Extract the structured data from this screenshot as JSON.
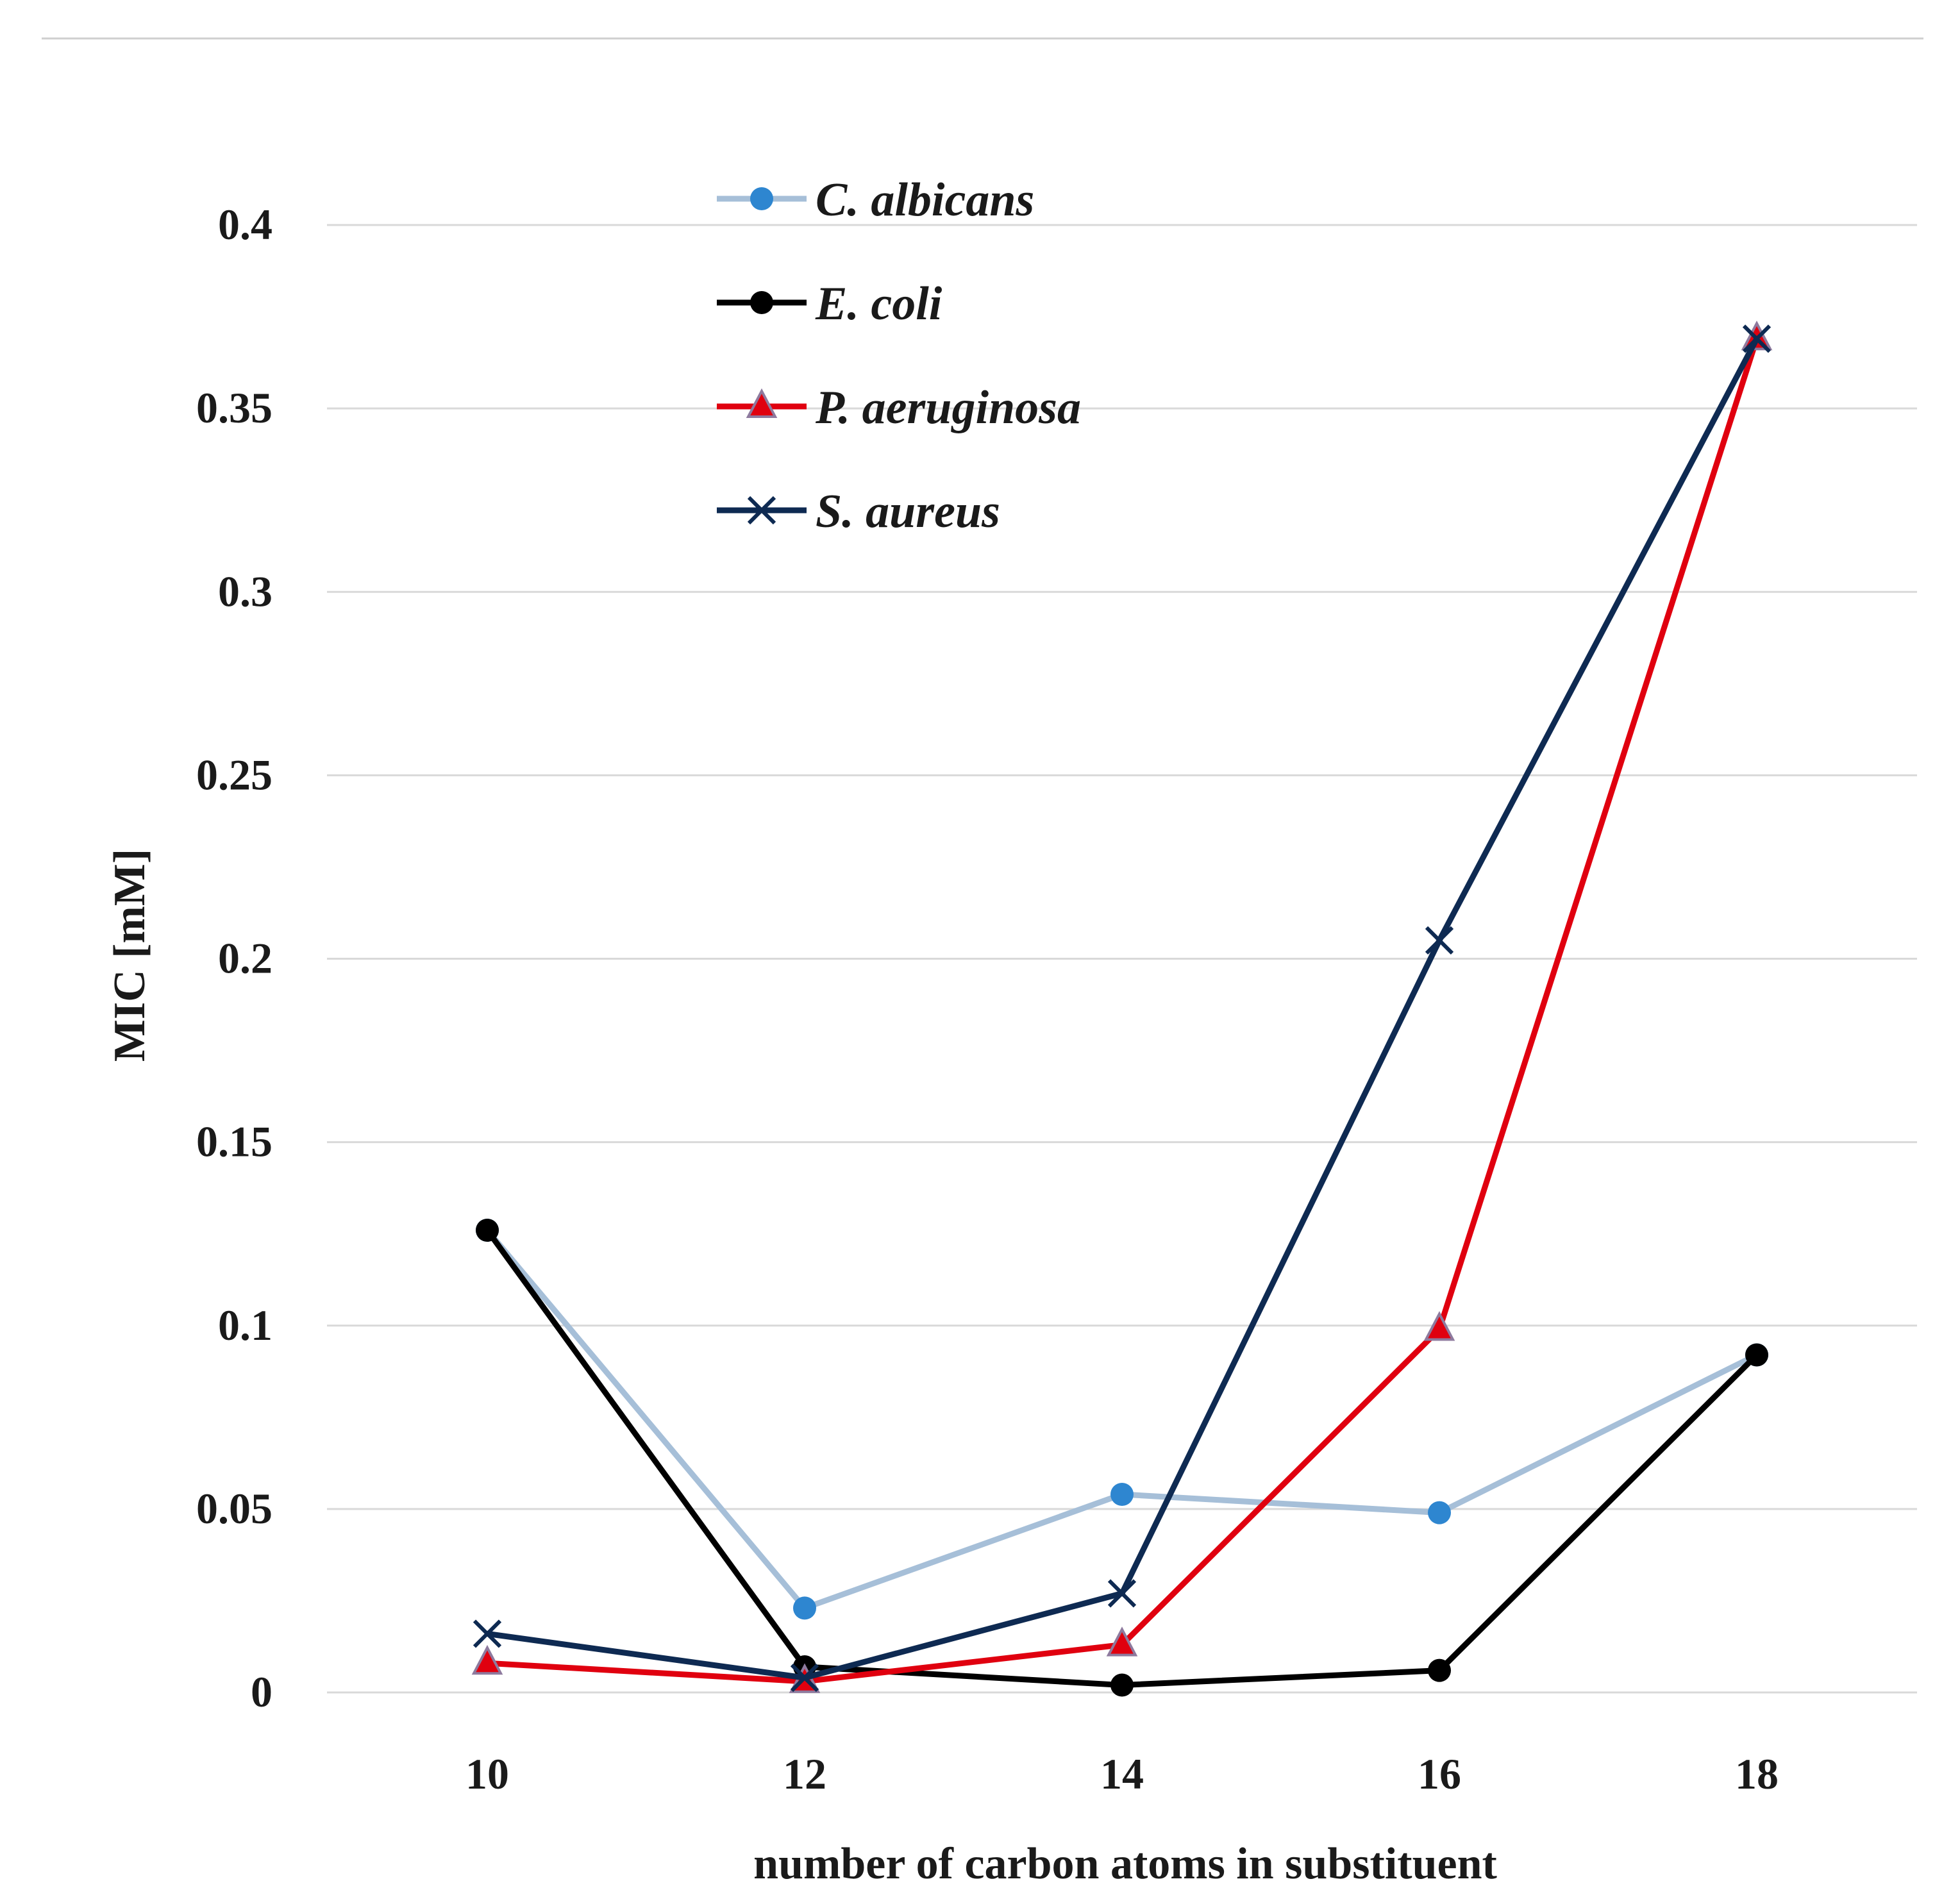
{
  "chart_data": {
    "type": "line",
    "title": "",
    "xlabel": "number of carbon atoms in substituent",
    "ylabel": "MIC [mM]",
    "x": [
      10,
      12,
      14,
      16,
      18
    ],
    "x_tick_labels": [
      "10",
      "12",
      "14",
      "16",
      "18"
    ],
    "ylim": [
      0,
      0.4
    ],
    "y_ticks": [
      0,
      0.05,
      0.1,
      0.15,
      0.2,
      0.25,
      0.3,
      0.35,
      0.4
    ],
    "y_tick_labels": [
      "0",
      "0.05",
      "0.1",
      "0.15",
      "0.2",
      "0.25",
      "0.3",
      "0.35",
      "0.4"
    ],
    "grid": true,
    "legend_position": "top-center",
    "series": [
      {
        "name": "C. albicans",
        "values": [
          0.126,
          0.023,
          0.054,
          0.049,
          0.092
        ],
        "color": "#a6bfd8",
        "marker_color": "#2e86d0",
        "marker": "circle"
      },
      {
        "name": "E. coli",
        "values": [
          0.126,
          0.007,
          0.002,
          0.006,
          0.092
        ],
        "color": "#000000",
        "marker_color": "#000000",
        "marker": "circle"
      },
      {
        "name": "P. aeruginosa",
        "values": [
          0.008,
          0.003,
          0.013,
          0.099,
          0.369
        ],
        "color": "#e0000f",
        "marker_color": "#e0000f",
        "marker": "triangle"
      },
      {
        "name": "S. aureus",
        "values": [
          0.016,
          0.004,
          0.027,
          0.205,
          0.369
        ],
        "color": "#0e2a52",
        "marker_color": "#0e2a52",
        "marker": "x"
      }
    ]
  },
  "colors": {
    "gridline": "#d9d9d9",
    "top_rule": "#cfcfcf"
  }
}
